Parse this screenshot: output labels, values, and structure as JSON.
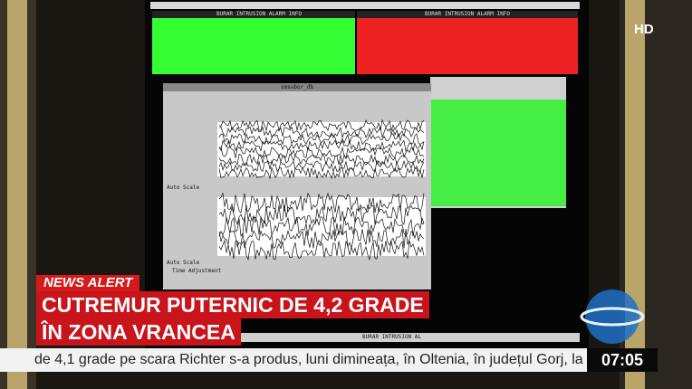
{
  "broadcast": {
    "channel_badge": "HD",
    "alert_label": "NEWS ALERT",
    "headline_lines": [
      "CUTREMUR PUTERNIC DE 4,2 GRADE",
      "ÎN ZONA VRANCEA"
    ],
    "ticker": "de 4,1 grade pe scara Richter s-a produs, luni dimineața, în Oltenia, în județul Gorj, la",
    "clock": "07:05"
  },
  "screen": {
    "alarm_titles": [
      "BURAR INTRUSION ALARM INFO",
      "BURAR INTRUSION ALARM INFO"
    ],
    "viewer_title": "smsubor_db",
    "auto_scale": [
      "Auto Scale",
      "Auto Scale"
    ],
    "time_adjustment": "Time Adjustment",
    "taskbar_item": "BURAR INTRUSION AL"
  }
}
